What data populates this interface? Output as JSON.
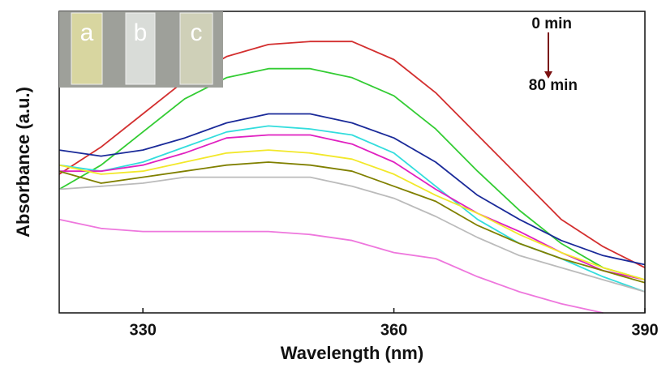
{
  "chart_data": {
    "type": "line",
    "x_label": "Wavelength (nm)",
    "y_label": "Absorbance (a.u.)",
    "x": [
      320,
      325,
      330,
      335,
      340,
      345,
      350,
      355,
      360,
      365,
      370,
      375,
      380,
      385,
      390
    ],
    "xlim": [
      320,
      390
    ],
    "xticks": [
      330,
      360,
      390
    ],
    "ylim": [
      0,
      1
    ],
    "series": [
      {
        "color": "#d32f2f",
        "values": [
          0.46,
          0.55,
          0.66,
          0.77,
          0.85,
          0.89,
          0.9,
          0.9,
          0.84,
          0.73,
          0.59,
          0.45,
          0.31,
          0.22,
          0.15
        ]
      },
      {
        "color": "#33cc33",
        "values": [
          0.41,
          0.49,
          0.6,
          0.71,
          0.78,
          0.81,
          0.81,
          0.78,
          0.72,
          0.61,
          0.47,
          0.34,
          0.23,
          0.15,
          0.11
        ]
      },
      {
        "color": "#1a2a99",
        "values": [
          0.54,
          0.52,
          0.54,
          0.58,
          0.63,
          0.66,
          0.66,
          0.63,
          0.58,
          0.5,
          0.39,
          0.31,
          0.24,
          0.19,
          0.16
        ]
      },
      {
        "color": "#33dddd",
        "values": [
          0.49,
          0.47,
          0.5,
          0.55,
          0.6,
          0.62,
          0.61,
          0.59,
          0.53,
          0.42,
          0.31,
          0.23,
          0.18,
          0.12,
          0.07
        ]
      },
      {
        "color": "#e020c0",
        "values": [
          0.47,
          0.47,
          0.49,
          0.53,
          0.58,
          0.59,
          0.59,
          0.56,
          0.5,
          0.41,
          0.33,
          0.27,
          0.2,
          0.14,
          0.11
        ]
      },
      {
        "color": "#f2e82a",
        "values": [
          0.49,
          0.46,
          0.47,
          0.5,
          0.53,
          0.54,
          0.53,
          0.51,
          0.46,
          0.39,
          0.33,
          0.26,
          0.2,
          0.15,
          0.11
        ]
      },
      {
        "color": "#808000",
        "values": [
          0.47,
          0.43,
          0.45,
          0.47,
          0.49,
          0.5,
          0.49,
          0.47,
          0.42,
          0.37,
          0.29,
          0.23,
          0.18,
          0.14,
          0.1
        ]
      },
      {
        "color": "#bbbbbb",
        "values": [
          0.41,
          0.42,
          0.43,
          0.45,
          0.45,
          0.45,
          0.45,
          0.42,
          0.38,
          0.32,
          0.25,
          0.19,
          0.15,
          0.11,
          0.07
        ]
      },
      {
        "color": "#ee77dd",
        "values": [
          0.31,
          0.28,
          0.27,
          0.27,
          0.27,
          0.27,
          0.26,
          0.24,
          0.2,
          0.18,
          0.12,
          0.07,
          0.03,
          0.0,
          null
        ]
      }
    ],
    "annotations": {
      "start": "0 min",
      "end": "80 min"
    },
    "inset_labels": [
      "a",
      "b",
      "c"
    ]
  }
}
